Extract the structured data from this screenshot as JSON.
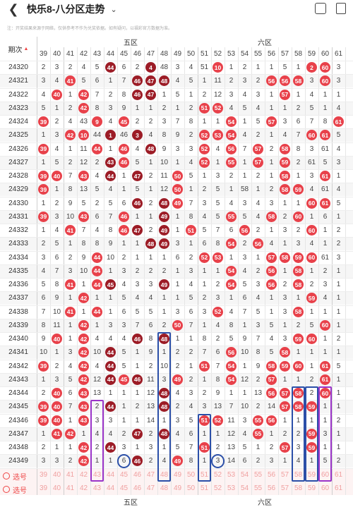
{
  "header": {
    "title": "快乐8-八分区走势"
  },
  "notice": "注：开奖结果来源于网络，仅供参考不作为兑奖依据。如有疑问，以福彩官方数据为准。",
  "period_label": "期次",
  "zones": [
    "五区",
    "六区"
  ],
  "columns": [
    39,
    40,
    41,
    42,
    43,
    44,
    45,
    46,
    47,
    48,
    49,
    50,
    51,
    52,
    53,
    54,
    55,
    56,
    57,
    58,
    59,
    60,
    61
  ],
  "rows": [
    {
      "p": "24320",
      "c": [
        "2",
        "3",
        "2",
        "4",
        "5",
        "44",
        "6",
        "2",
        "4",
        "48",
        "3",
        "4",
        "51",
        "10",
        "1",
        "2",
        "1",
        "1",
        "5",
        "1",
        "2",
        "60",
        "3"
      ],
      "h": [
        5,
        8,
        13,
        20,
        21
      ]
    },
    {
      "p": "24321",
      "c": [
        "3",
        "4",
        "41",
        "5",
        "6",
        "1",
        "7",
        "46",
        "47",
        "48",
        "4",
        "5",
        "1",
        "11",
        "2",
        "3",
        "2",
        "56",
        "56",
        "58",
        "3",
        "60",
        "3"
      ],
      "h": [
        2,
        7,
        8,
        9,
        17,
        18,
        19,
        21
      ]
    },
    {
      "p": "24322",
      "c": [
        "4",
        "40",
        "1",
        "42",
        "7",
        "2",
        "8",
        "46",
        "47",
        "1",
        "5",
        "1",
        "2",
        "12",
        "3",
        "4",
        "3",
        "1",
        "57",
        "1",
        "4",
        "1",
        "1"
      ],
      "h": [
        1,
        3,
        7,
        8,
        18
      ]
    },
    {
      "p": "24323",
      "c": [
        "5",
        "1",
        "2",
        "42",
        "8",
        "3",
        "9",
        "1",
        "1",
        "2",
        "1",
        "2",
        "51",
        "52",
        "4",
        "5",
        "4",
        "1",
        "1",
        "2",
        "5",
        "1",
        "4"
      ],
      "h": [
        3,
        12,
        13
      ]
    },
    {
      "p": "24324",
      "c": [
        "39",
        "2",
        "4",
        "43",
        "9",
        "4",
        "45",
        "2",
        "2",
        "3",
        "7",
        "8",
        "1",
        "1",
        "54",
        "1",
        "5",
        "57",
        "3",
        "6",
        "7",
        "8",
        "61"
      ],
      "h": [
        0,
        4,
        6,
        14,
        17,
        22
      ]
    },
    {
      "p": "24325",
      "c": [
        "1",
        "3",
        "42",
        "10",
        "44",
        "1",
        "46",
        "3",
        "4",
        "8",
        "9",
        "2",
        "52",
        "53",
        "54",
        "4",
        "2",
        "1",
        "4",
        "7",
        "60",
        "61",
        "5"
      ],
      "h": [
        2,
        3,
        5,
        7,
        12,
        13,
        14,
        20,
        21
      ]
    },
    {
      "p": "24326",
      "c": [
        "39",
        "4",
        "1",
        "11",
        "44",
        "1",
        "46",
        "4",
        "48",
        "9",
        "3",
        "3",
        "52",
        "4",
        "56",
        "7",
        "57",
        "2",
        "58",
        "8",
        "3",
        "61",
        "4"
      ],
      "h": [
        0,
        4,
        6,
        8,
        12,
        14,
        16,
        18
      ]
    },
    {
      "p": "24327",
      "c": [
        "1",
        "5",
        "2",
        "12",
        "2",
        "43",
        "46",
        "5",
        "1",
        "10",
        "1",
        "4",
        "52",
        "1",
        "55",
        "1",
        "57",
        "1",
        "59",
        "2",
        "61",
        "5",
        "3"
      ],
      "h": [
        5,
        6,
        12,
        14,
        16,
        18
      ]
    },
    {
      "p": "24328",
      "c": [
        "39",
        "40",
        "7",
        "43",
        "4",
        "44",
        "1",
        "47",
        "2",
        "11",
        "50",
        "5",
        "1",
        "3",
        "2",
        "1",
        "2",
        "1",
        "58",
        "1",
        "3",
        "61",
        "1"
      ],
      "h": [
        0,
        1,
        3,
        5,
        7,
        10,
        18,
        21
      ]
    },
    {
      "p": "24329",
      "c": [
        "39",
        "1",
        "8",
        "13",
        "5",
        "4",
        "1",
        "5",
        "1",
        "12",
        "50",
        "1",
        "2",
        "5",
        "1",
        "58",
        "1",
        "2",
        "58",
        "59",
        "4",
        "61",
        "4"
      ],
      "h": [
        0,
        10,
        18,
        19
      ]
    },
    {
      "p": "24330",
      "c": [
        "1",
        "2",
        "9",
        "5",
        "2",
        "5",
        "6",
        "46",
        "2",
        "48",
        "49",
        "7",
        "3",
        "5",
        "4",
        "3",
        "4",
        "3",
        "1",
        "1",
        "60",
        "61",
        "5"
      ],
      "h": [
        7,
        9,
        10,
        20,
        21
      ]
    },
    {
      "p": "24331",
      "c": [
        "39",
        "3",
        "10",
        "43",
        "6",
        "7",
        "46",
        "1",
        "1",
        "49",
        "1",
        "8",
        "4",
        "5",
        "55",
        "5",
        "4",
        "58",
        "2",
        "60",
        "1",
        "6",
        "1"
      ],
      "h": [
        0,
        3,
        6,
        9,
        14,
        17,
        19
      ]
    },
    {
      "p": "24332",
      "c": [
        "1",
        "4",
        "41",
        "7",
        "4",
        "8",
        "46",
        "47",
        "2",
        "49",
        "1",
        "51",
        "5",
        "7",
        "6",
        "56",
        "2",
        "1",
        "3",
        "2",
        "60",
        "1",
        "2"
      ],
      "h": [
        2,
        6,
        7,
        9,
        11,
        15,
        20
      ]
    },
    {
      "p": "24333",
      "c": [
        "2",
        "5",
        "1",
        "8",
        "8",
        "9",
        "1",
        "1",
        "48",
        "49",
        "3",
        "1",
        "6",
        "8",
        "54",
        "2",
        "56",
        "4",
        "1",
        "3",
        "4",
        "1",
        "2"
      ],
      "h": [
        8,
        9,
        14,
        16
      ]
    },
    {
      "p": "24334",
      "c": [
        "3",
        "6",
        "2",
        "9",
        "44",
        "10",
        "2",
        "1",
        "1",
        "1",
        "6",
        "2",
        "52",
        "53",
        "1",
        "3",
        "1",
        "57",
        "58",
        "59",
        "60",
        "61",
        "3"
      ],
      "h": [
        4,
        12,
        13,
        17,
        18,
        19,
        20
      ]
    },
    {
      "p": "24335",
      "c": [
        "4",
        "7",
        "3",
        "10",
        "44",
        "1",
        "3",
        "2",
        "2",
        "2",
        "1",
        "3",
        "1",
        "1",
        "54",
        "4",
        "2",
        "56",
        "1",
        "58",
        "1",
        "2",
        "1"
      ],
      "h": [
        4,
        14,
        17,
        19
      ]
    },
    {
      "p": "24336",
      "c": [
        "5",
        "8",
        "41",
        "1",
        "44",
        "45",
        "4",
        "3",
        "3",
        "49",
        "1",
        "4",
        "1",
        "2",
        "54",
        "5",
        "3",
        "56",
        "2",
        "58",
        "2",
        "3",
        "1"
      ],
      "h": [
        2,
        4,
        5,
        9,
        14,
        17,
        19
      ]
    },
    {
      "p": "24337",
      "c": [
        "6",
        "9",
        "1",
        "42",
        "1",
        "1",
        "5",
        "4",
        "4",
        "1",
        "1",
        "5",
        "2",
        "3",
        "1",
        "6",
        "4",
        "1",
        "3",
        "1",
        "59",
        "4",
        "1"
      ],
      "h": [
        3,
        20
      ]
    },
    {
      "p": "24338",
      "c": [
        "7",
        "10",
        "41",
        "1",
        "44",
        "1",
        "6",
        "5",
        "5",
        "1",
        "3",
        "6",
        "3",
        "52",
        "4",
        "7",
        "5",
        "1",
        "3",
        "58",
        "1",
        "1",
        "1"
      ],
      "h": [
        2,
        4,
        13,
        19
      ]
    },
    {
      "p": "24339",
      "c": [
        "8",
        "11",
        "1",
        "42",
        "1",
        "3",
        "3",
        "7",
        "6",
        "2",
        "50",
        "7",
        "1",
        "4",
        "8",
        "1",
        "3",
        "5",
        "1",
        "2",
        "5",
        "60",
        "1"
      ],
      "h": [
        3,
        10,
        21
      ]
    },
    {
      "p": "24340",
      "c": [
        "9",
        "40",
        "1",
        "42",
        "4",
        "4",
        "4",
        "46",
        "8",
        "48",
        "1",
        "1",
        "8",
        "2",
        "5",
        "9",
        "7",
        "4",
        "3",
        "59",
        "60",
        "1",
        "2"
      ],
      "h": [
        1,
        3,
        7,
        9,
        19,
        20
      ]
    },
    {
      "p": "24341",
      "c": [
        "10",
        "1",
        "3",
        "42",
        "10",
        "44",
        "5",
        "1",
        "9",
        "1",
        "2",
        "2",
        "7",
        "6",
        "56",
        "10",
        "8",
        "5",
        "58",
        "1",
        "1",
        "1",
        "1"
      ],
      "h": [
        3,
        5,
        14,
        18
      ]
    },
    {
      "p": "24342",
      "c": [
        "39",
        "2",
        "4",
        "42",
        "4",
        "44",
        "5",
        "1",
        "2",
        "10",
        "2",
        "1",
        "51",
        "7",
        "54",
        "1",
        "9",
        "58",
        "59",
        "60",
        "1",
        "61",
        "5"
      ],
      "h": [
        0,
        3,
        5,
        12,
        14,
        17,
        18,
        19,
        21
      ]
    },
    {
      "p": "24343",
      "c": [
        "1",
        "3",
        "5",
        "42",
        "12",
        "44",
        "45",
        "46",
        "11",
        "3",
        "49",
        "2",
        "1",
        "8",
        "54",
        "12",
        "2",
        "57",
        "1",
        "1",
        "2",
        "61",
        "1"
      ],
      "h": [
        3,
        5,
        6,
        7,
        10,
        14,
        17,
        21
      ]
    },
    {
      "p": "24344",
      "c": [
        "2",
        "40",
        "6",
        "43",
        "13",
        "1",
        "1",
        "1",
        "12",
        "48",
        "4",
        "3",
        "2",
        "9",
        "1",
        "1",
        "13",
        "56",
        "57",
        "58",
        "2",
        "60",
        "1"
      ],
      "h": [
        1,
        3,
        9,
        17,
        18,
        19,
        21
      ]
    },
    {
      "p": "24345",
      "c": [
        "39",
        "40",
        "7",
        "43",
        "2",
        "44",
        "1",
        "2",
        "13",
        "48",
        "2",
        "4",
        "3",
        "13",
        "7",
        "10",
        "2",
        "14",
        "57",
        "58",
        "59",
        "1",
        "1"
      ],
      "h": [
        0,
        1,
        3,
        5,
        9,
        18,
        19,
        20
      ]
    },
    {
      "p": "24346",
      "c": [
        "39",
        "40",
        "1",
        "43",
        "3",
        "3",
        "1",
        "1",
        "14",
        "1",
        "3",
        "5",
        "51",
        "52",
        "11",
        "3",
        "55",
        "56",
        "1",
        "1",
        "1",
        "1",
        "2"
      ],
      "h": [
        0,
        1,
        3,
        12,
        13,
        16,
        17
      ]
    },
    {
      "p": "24347",
      "c": [
        "1",
        "41",
        "42",
        "1",
        "4",
        "4",
        "2",
        "47",
        "2",
        "48",
        "4",
        "6",
        "1",
        "1",
        "12",
        "4",
        "55",
        "1",
        "2",
        "2",
        "59",
        "3",
        "1"
      ],
      "h": [
        1,
        2,
        7,
        9,
        16,
        20
      ]
    },
    {
      "p": "24348",
      "c": [
        "2",
        "1",
        "1",
        "42",
        "2",
        "44",
        "3",
        "1",
        "3",
        "1",
        "5",
        "7",
        "51",
        "2",
        "13",
        "5",
        "1",
        "2",
        "57",
        "3",
        "59",
        "1",
        "1"
      ],
      "h": [
        3,
        5,
        12,
        18,
        20
      ]
    },
    {
      "p": "24349",
      "c": [
        "3",
        "3",
        "2",
        "42",
        "1",
        "1",
        "6",
        "46",
        "2",
        "4",
        "49",
        "8",
        "1",
        "3",
        "14",
        "6",
        "2",
        "3",
        "1",
        "4",
        "1",
        "5",
        "2"
      ],
      "h": [
        3,
        7,
        10
      ]
    }
  ],
  "select_label": "选号"
}
